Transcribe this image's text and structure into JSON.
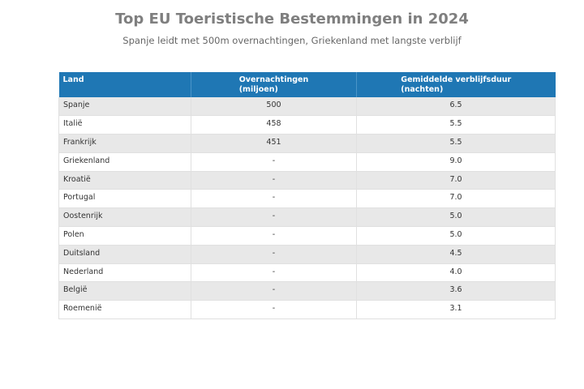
{
  "chart_data": {
    "type": "table",
    "title": "Top EU Toeristische Bestemmingen in 2024",
    "subtitle": "Spanje leidt met 500m overnachtingen, Griekenland met langste verblijf",
    "columns": [
      {
        "line1": "Land",
        "line2": ""
      },
      {
        "line1": "Overnachtingen",
        "line2": "(miljoen)"
      },
      {
        "line1": "Gemiddelde verblijfsduur",
        "line2": "(nachten)"
      }
    ],
    "rows": [
      {
        "country": "Spanje",
        "nights": "500",
        "stay": "6.5"
      },
      {
        "country": "Italië",
        "nights": "458",
        "stay": "5.5"
      },
      {
        "country": "Frankrijk",
        "nights": "451",
        "stay": "5.5"
      },
      {
        "country": "Griekenland",
        "nights": "-",
        "stay": "9.0"
      },
      {
        "country": "Kroatië",
        "nights": "-",
        "stay": "7.0"
      },
      {
        "country": "Portugal",
        "nights": "-",
        "stay": "7.0"
      },
      {
        "country": "Oostenrijk",
        "nights": "-",
        "stay": "5.0"
      },
      {
        "country": "Polen",
        "nights": "-",
        "stay": "5.0"
      },
      {
        "country": "Duitsland",
        "nights": "-",
        "stay": "4.5"
      },
      {
        "country": "Nederland",
        "nights": "-",
        "stay": "4.0"
      },
      {
        "country": "België",
        "nights": "-",
        "stay": "3.6"
      },
      {
        "country": "Roemenië",
        "nights": "-",
        "stay": "3.1"
      }
    ]
  },
  "colors": {
    "header_bg": "#1f77b4",
    "header_text": "#ffffff",
    "row_odd": "#e8e8e8",
    "row_even": "#ffffff",
    "title_text": "#7f7f7f"
  }
}
